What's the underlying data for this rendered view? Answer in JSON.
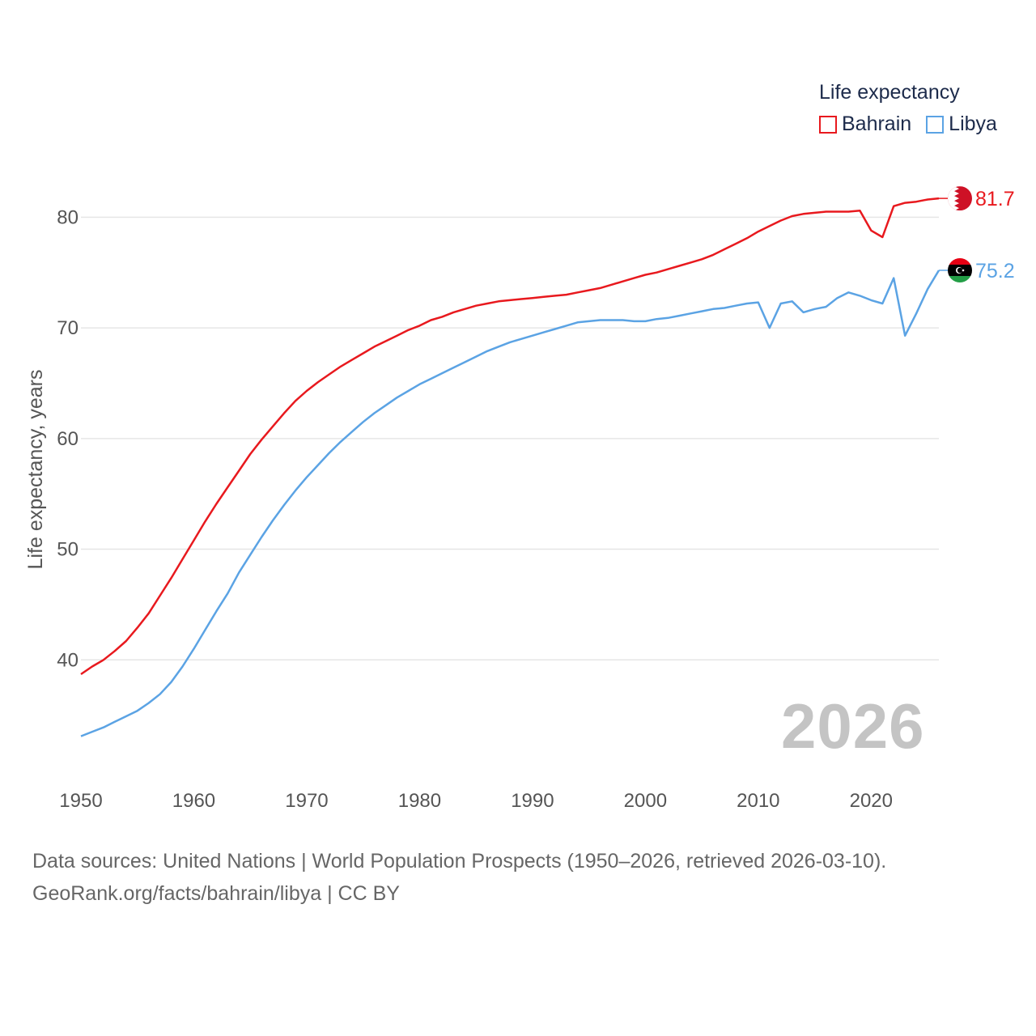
{
  "legend": {
    "title": "Life expectancy",
    "items": [
      {
        "label": "Bahrain",
        "color": "#e8191e"
      },
      {
        "label": "Libya",
        "color": "#5ba3e4"
      }
    ]
  },
  "year_watermark": "2026",
  "footer": {
    "line1": "Data sources: United Nations | World Population Prospects (1950–2026, retrieved 2026-03-10).",
    "line2": "GeoRank.org/facts/bahrain/libya | CC BY"
  },
  "chart_data": {
    "type": "line",
    "title": "Life expectancy",
    "xlabel": "",
    "ylabel": "Life expectancy, years",
    "xlim": [
      1950,
      2026
    ],
    "ylim": [
      30,
      85
    ],
    "x_ticks": [
      1950,
      1960,
      1970,
      1980,
      1990,
      2000,
      2010,
      2020
    ],
    "y_ticks": [
      40,
      50,
      60,
      70,
      80
    ],
    "grid": true,
    "legend_position": "top-right",
    "series": [
      {
        "name": "Bahrain",
        "color": "#e8191e",
        "end_label": "81.7",
        "points": [
          [
            1950,
            38.7
          ],
          [
            1951,
            39.4
          ],
          [
            1952,
            40.0
          ],
          [
            1953,
            40.8
          ],
          [
            1954,
            41.7
          ],
          [
            1955,
            42.9
          ],
          [
            1956,
            44.2
          ],
          [
            1957,
            45.8
          ],
          [
            1958,
            47.4
          ],
          [
            1959,
            49.1
          ],
          [
            1960,
            50.8
          ],
          [
            1961,
            52.5
          ],
          [
            1962,
            54.1
          ],
          [
            1963,
            55.6
          ],
          [
            1964,
            57.1
          ],
          [
            1965,
            58.6
          ],
          [
            1966,
            59.9
          ],
          [
            1967,
            61.1
          ],
          [
            1968,
            62.3
          ],
          [
            1969,
            63.4
          ],
          [
            1970,
            64.3
          ],
          [
            1971,
            65.1
          ],
          [
            1972,
            65.8
          ],
          [
            1973,
            66.5
          ],
          [
            1974,
            67.1
          ],
          [
            1975,
            67.7
          ],
          [
            1976,
            68.3
          ],
          [
            1977,
            68.8
          ],
          [
            1978,
            69.3
          ],
          [
            1979,
            69.8
          ],
          [
            1980,
            70.2
          ],
          [
            1981,
            70.7
          ],
          [
            1982,
            71.0
          ],
          [
            1983,
            71.4
          ],
          [
            1984,
            71.7
          ],
          [
            1985,
            72.0
          ],
          [
            1986,
            72.2
          ],
          [
            1987,
            72.4
          ],
          [
            1988,
            72.5
          ],
          [
            1989,
            72.6
          ],
          [
            1990,
            72.7
          ],
          [
            1991,
            72.8
          ],
          [
            1992,
            72.9
          ],
          [
            1993,
            73.0
          ],
          [
            1994,
            73.2
          ],
          [
            1995,
            73.4
          ],
          [
            1996,
            73.6
          ],
          [
            1997,
            73.9
          ],
          [
            1998,
            74.2
          ],
          [
            1999,
            74.5
          ],
          [
            2000,
            74.8
          ],
          [
            2001,
            75.0
          ],
          [
            2002,
            75.3
          ],
          [
            2003,
            75.6
          ],
          [
            2004,
            75.9
          ],
          [
            2005,
            76.2
          ],
          [
            2006,
            76.6
          ],
          [
            2007,
            77.1
          ],
          [
            2008,
            77.6
          ],
          [
            2009,
            78.1
          ],
          [
            2010,
            78.7
          ],
          [
            2011,
            79.2
          ],
          [
            2012,
            79.7
          ],
          [
            2013,
            80.1
          ],
          [
            2014,
            80.3
          ],
          [
            2015,
            80.4
          ],
          [
            2016,
            80.5
          ],
          [
            2017,
            80.5
          ],
          [
            2018,
            80.5
          ],
          [
            2019,
            80.6
          ],
          [
            2020,
            78.8
          ],
          [
            2021,
            78.2
          ],
          [
            2022,
            81.0
          ],
          [
            2023,
            81.3
          ],
          [
            2024,
            81.4
          ],
          [
            2025,
            81.6
          ],
          [
            2026,
            81.7
          ]
        ]
      },
      {
        "name": "Libya",
        "color": "#5ba3e4",
        "end_label": "75.2",
        "points": [
          [
            1950,
            33.1
          ],
          [
            1951,
            33.5
          ],
          [
            1952,
            33.9
          ],
          [
            1953,
            34.4
          ],
          [
            1954,
            34.9
          ],
          [
            1955,
            35.4
          ],
          [
            1956,
            36.1
          ],
          [
            1957,
            36.9
          ],
          [
            1958,
            38.0
          ],
          [
            1959,
            39.4
          ],
          [
            1960,
            41.0
          ],
          [
            1961,
            42.7
          ],
          [
            1962,
            44.4
          ],
          [
            1963,
            46.0
          ],
          [
            1964,
            47.9
          ],
          [
            1965,
            49.5
          ],
          [
            1966,
            51.1
          ],
          [
            1967,
            52.6
          ],
          [
            1968,
            54.0
          ],
          [
            1969,
            55.3
          ],
          [
            1970,
            56.5
          ],
          [
            1971,
            57.6
          ],
          [
            1972,
            58.7
          ],
          [
            1973,
            59.7
          ],
          [
            1974,
            60.6
          ],
          [
            1975,
            61.5
          ],
          [
            1976,
            62.3
          ],
          [
            1977,
            63.0
          ],
          [
            1978,
            63.7
          ],
          [
            1979,
            64.3
          ],
          [
            1980,
            64.9
          ],
          [
            1981,
            65.4
          ],
          [
            1982,
            65.9
          ],
          [
            1983,
            66.4
          ],
          [
            1984,
            66.9
          ],
          [
            1985,
            67.4
          ],
          [
            1986,
            67.9
          ],
          [
            1987,
            68.3
          ],
          [
            1988,
            68.7
          ],
          [
            1989,
            69.0
          ],
          [
            1990,
            69.3
          ],
          [
            1991,
            69.6
          ],
          [
            1992,
            69.9
          ],
          [
            1993,
            70.2
          ],
          [
            1994,
            70.5
          ],
          [
            1995,
            70.6
          ],
          [
            1996,
            70.7
          ],
          [
            1997,
            70.7
          ],
          [
            1998,
            70.7
          ],
          [
            1999,
            70.6
          ],
          [
            2000,
            70.6
          ],
          [
            2001,
            70.8
          ],
          [
            2002,
            70.9
          ],
          [
            2003,
            71.1
          ],
          [
            2004,
            71.3
          ],
          [
            2005,
            71.5
          ],
          [
            2006,
            71.7
          ],
          [
            2007,
            71.8
          ],
          [
            2008,
            72.0
          ],
          [
            2009,
            72.2
          ],
          [
            2010,
            72.3
          ],
          [
            2011,
            70.0
          ],
          [
            2012,
            72.2
          ],
          [
            2013,
            72.4
          ],
          [
            2014,
            71.4
          ],
          [
            2015,
            71.7
          ],
          [
            2016,
            71.9
          ],
          [
            2017,
            72.7
          ],
          [
            2018,
            73.2
          ],
          [
            2019,
            72.9
          ],
          [
            2020,
            72.5
          ],
          [
            2021,
            72.2
          ],
          [
            2022,
            74.5
          ],
          [
            2023,
            69.3
          ],
          [
            2024,
            71.3
          ],
          [
            2025,
            73.5
          ],
          [
            2026,
            75.2
          ]
        ]
      }
    ]
  }
}
